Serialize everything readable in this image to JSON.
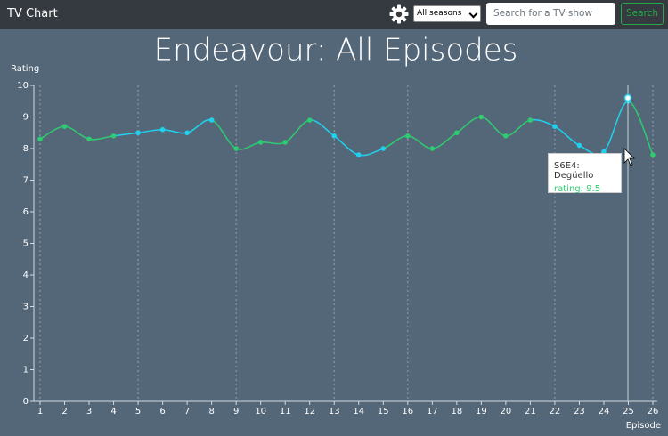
{
  "navbar": {
    "brand": "TV Chart",
    "season_select": "All seasons",
    "search_placeholder": "Search for a TV show",
    "search_button": "Search"
  },
  "tooltip": {
    "title": "S6E4: Degüello",
    "label": "rating: 9.5"
  },
  "chart_data": {
    "type": "line",
    "title": "Endeavour: All Episodes",
    "y_label": "Rating",
    "x_label": "Episode",
    "xlim": [
      1,
      26
    ],
    "xticks": [
      1,
      2,
      3,
      4,
      5,
      6,
      7,
      8,
      9,
      10,
      11,
      12,
      13,
      14,
      15,
      16,
      17,
      18,
      19,
      20,
      21,
      22,
      23,
      24,
      25,
      26
    ],
    "ylim": [
      0,
      10
    ],
    "yticks": [
      0,
      1,
      2,
      3,
      4,
      5,
      6,
      7,
      8,
      9,
      10
    ],
    "series": [
      {
        "color": "#2ecc71",
        "x": [
          1,
          2,
          3,
          4
        ],
        "values": [
          8.3,
          8.7,
          8.3,
          8.4
        ]
      },
      {
        "color": "#1fd1ee",
        "x": [
          5,
          6,
          7,
          8
        ],
        "values": [
          8.5,
          8.6,
          8.5,
          8.9
        ]
      },
      {
        "color": "#2ecc71",
        "x": [
          9,
          10,
          11,
          12
        ],
        "values": [
          8.0,
          8.2,
          8.2,
          8.9
        ]
      },
      {
        "color": "#1fd1ee",
        "x": [
          13,
          14,
          15
        ],
        "values": [
          8.4,
          7.8,
          8.0
        ]
      },
      {
        "color": "#2ecc71",
        "x": [
          16,
          17,
          18,
          19,
          20,
          21
        ],
        "values": [
          8.4,
          8.0,
          8.5,
          9.0,
          8.4,
          8.9
        ]
      },
      {
        "color": "#1fd1ee",
        "x": [
          22,
          23,
          24,
          25
        ],
        "values": [
          8.7,
          8.1,
          7.9,
          9.5
        ]
      },
      {
        "color": "#2ecc71",
        "x": [
          26
        ],
        "values": [
          7.8
        ]
      }
    ]
  }
}
